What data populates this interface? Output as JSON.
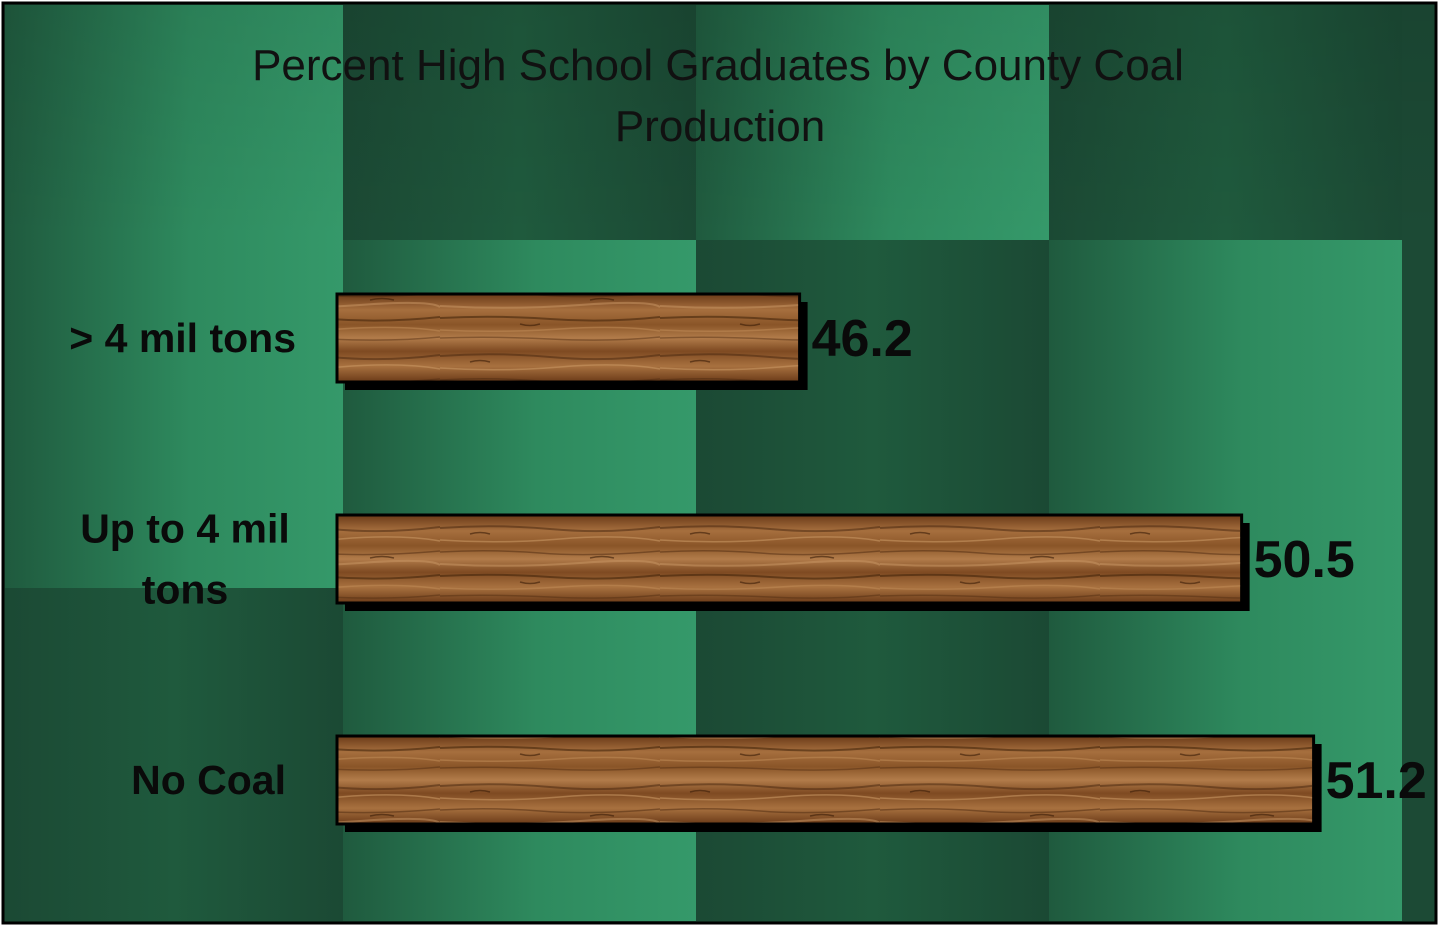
{
  "chart_data": {
    "type": "bar",
    "orientation": "horizontal",
    "title_lines": [
      "Percent High School Graduates by County Coal",
      "Production"
    ],
    "categories": [
      [
        "> 4 mil tons"
      ],
      [
        "Up to 4 mil",
        "tons"
      ],
      [
        "No Coal"
      ]
    ],
    "values": [
      46.2,
      50.5,
      51.2
    ],
    "value_labels": [
      "46.2",
      "50.5",
      "51.2"
    ],
    "xlim": [
      41.7,
      51.7
    ],
    "grid": false,
    "legend": "none",
    "colors": {
      "background_dark": "#1c4d36",
      "background_light": "#33986a",
      "bar_wood_dark": "#6e3f1c",
      "bar_wood_light": "#b07a48",
      "border": "#000000"
    }
  }
}
